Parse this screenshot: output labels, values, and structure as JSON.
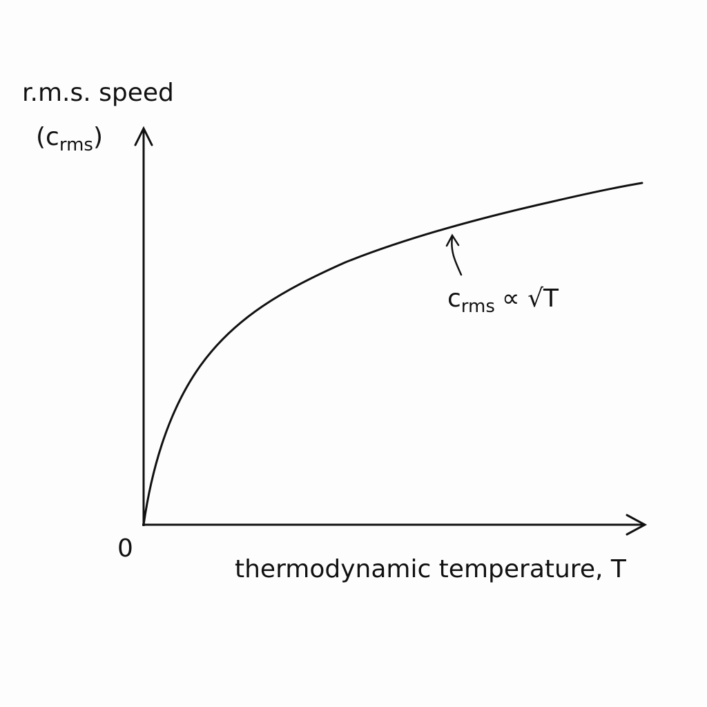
{
  "y_axis": {
    "label": "r.m.s. speed",
    "symbol_open": "(c",
    "symbol_sub": "rms",
    "symbol_close": ")"
  },
  "origin": "0",
  "x_axis": {
    "label": "thermodynamic temperature, T"
  },
  "annotation": {
    "symbol": "c",
    "symbol_sub": "rms",
    "relation": "∝ √T"
  }
}
